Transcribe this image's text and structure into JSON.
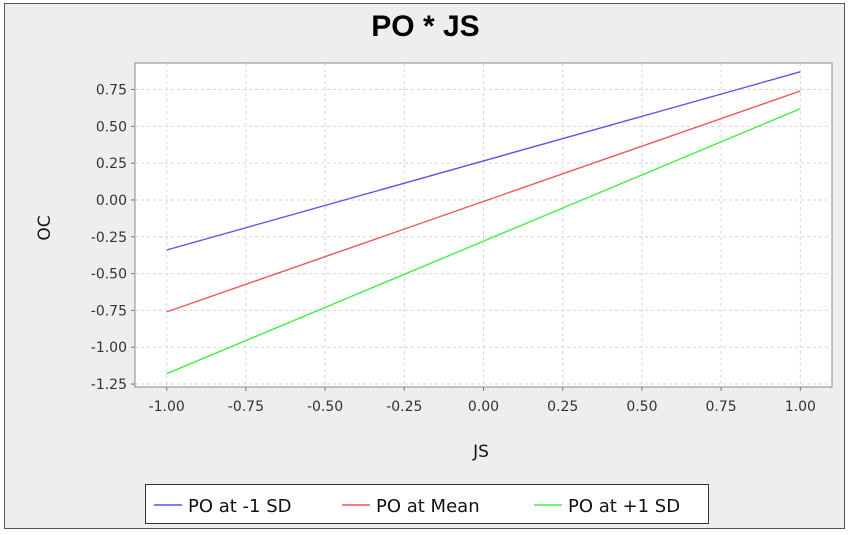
{
  "chart_data": {
    "type": "line",
    "title": "PO * JS",
    "xlabel": "JS",
    "ylabel": "OC",
    "xlim": [
      -1.1,
      1.1
    ],
    "ylim": [
      -1.27,
      0.93
    ],
    "xticks": [
      "-1.00",
      "-0.75",
      "-0.50",
      "-0.25",
      "0.00",
      "0.25",
      "0.50",
      "0.75",
      "1.00"
    ],
    "yticks": [
      "0.75",
      "0.50",
      "0.25",
      "0.00",
      "-0.25",
      "-0.50",
      "-0.75",
      "-1.00",
      "-1.25"
    ],
    "grid": true,
    "legend_position": "bottom",
    "series": [
      {
        "name": "PO at -1 SD",
        "color": "#5555ee",
        "x": [
          -1.0,
          1.0
        ],
        "y": [
          -0.34,
          0.87
        ]
      },
      {
        "name": "PO at Mean",
        "color": "#ee5555",
        "x": [
          -1.0,
          1.0
        ],
        "y": [
          -0.76,
          0.74
        ]
      },
      {
        "name": "PO at +1 SD",
        "color": "#44ee44",
        "x": [
          -1.0,
          1.0
        ],
        "y": [
          -1.18,
          0.62
        ]
      }
    ]
  }
}
